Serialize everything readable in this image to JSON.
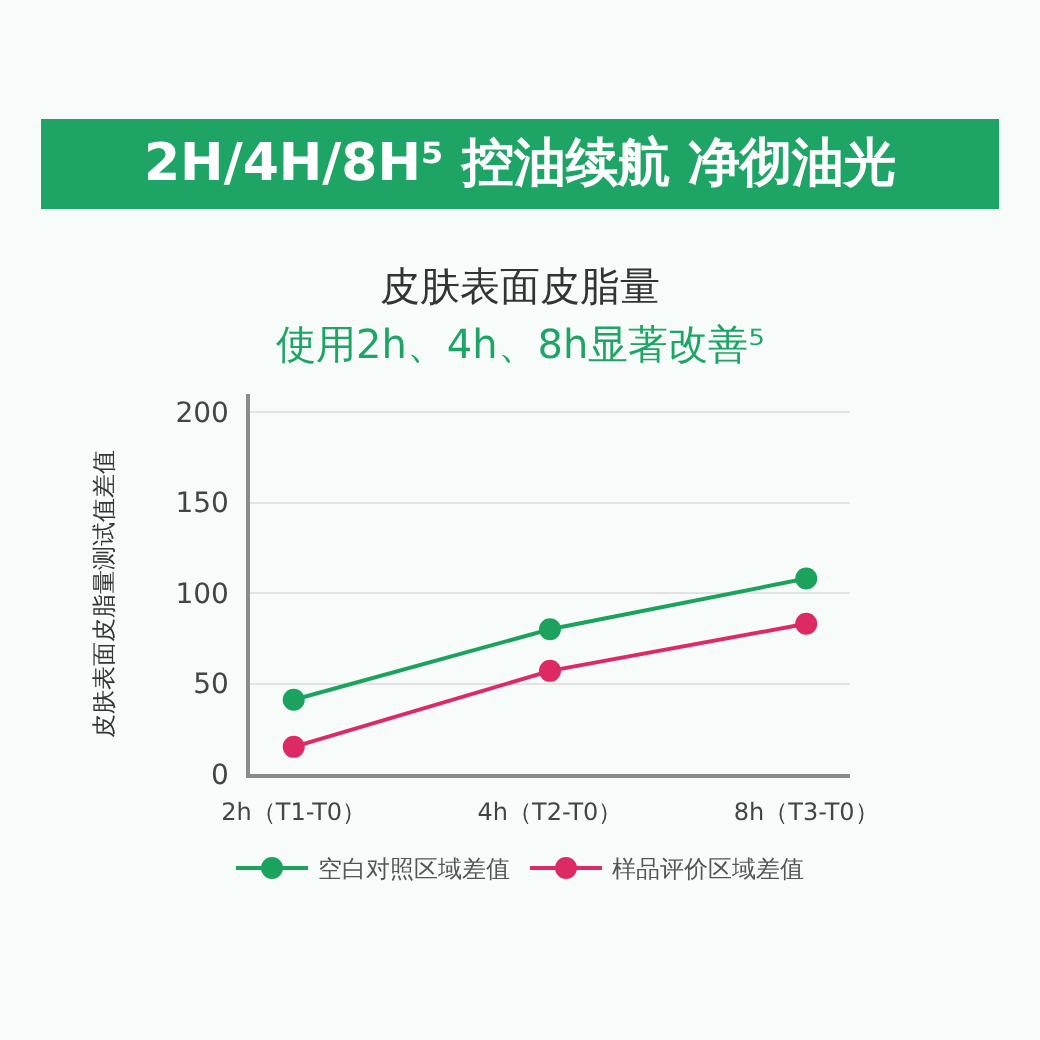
{
  "chart_data": {
    "type": "line",
    "title": "2H/4H/8H⁵ 控油续航 净彻油光",
    "subtitle": "皮肤表面皮脂量",
    "annotations": [
      "使用2h、4h、8h显著改善⁵"
    ],
    "ylabel": "皮肤表面皮脂量测试值差值",
    "categories": [
      "2h（T1-T0）",
      "4h（T2-T0）",
      "8h（T3-T0）"
    ],
    "series": [
      {
        "name": "空白对照区域差值",
        "color": "#1ba35e",
        "values": [
          41,
          80,
          108
        ]
      },
      {
        "name": "样品评价区域差值",
        "color": "#de2a64",
        "values": [
          15,
          57,
          83
        ]
      }
    ],
    "ylim": [
      0,
      210
    ],
    "yticks": [
      0,
      50,
      100,
      150,
      200
    ],
    "grid": "y",
    "legend": "bottom",
    "marker": "circle",
    "line_style": "solid"
  }
}
